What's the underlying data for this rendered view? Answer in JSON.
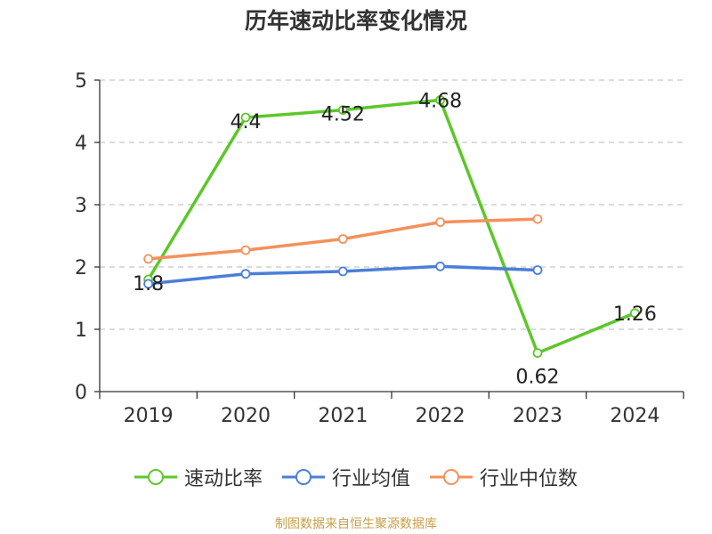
{
  "chart_data": {
    "type": "line",
    "title": "历年速动比率变化情况",
    "categories": [
      "2019",
      "2020",
      "2021",
      "2022",
      "2023",
      "2024"
    ],
    "ylim": [
      0,
      5
    ],
    "yticks": [
      0,
      1,
      2,
      3,
      4,
      5
    ],
    "grid": true,
    "legend_position": "bottom",
    "series": [
      {
        "name": "速动比率",
        "color": "#5cc72a",
        "values": [
          1.8,
          4.4,
          4.52,
          4.68,
          0.62,
          1.26
        ],
        "labels": [
          "1.8",
          "4.4",
          "4.52",
          "4.68",
          "0.62",
          "1.26"
        ]
      },
      {
        "name": "行业均值",
        "color": "#4a7fd8",
        "values": [
          1.73,
          1.89,
          1.93,
          2.01,
          1.95,
          null
        ]
      },
      {
        "name": "行业中位数",
        "color": "#f5905c",
        "values": [
          2.13,
          2.27,
          2.45,
          2.72,
          2.77,
          null
        ]
      }
    ]
  },
  "source": "制图数据来自恒生聚源数据库"
}
